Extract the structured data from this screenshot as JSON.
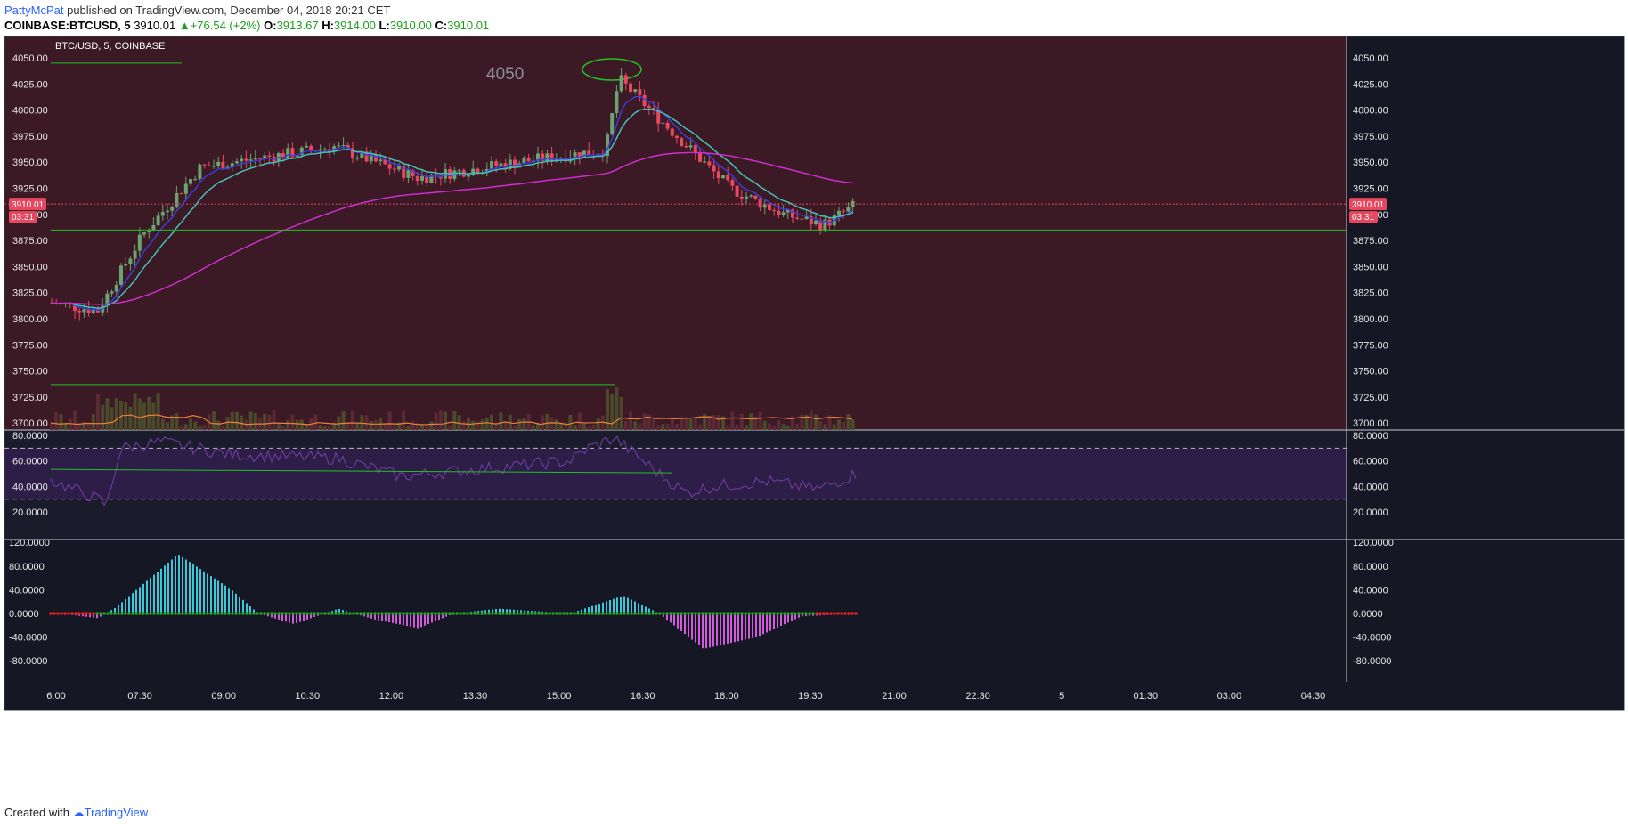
{
  "header": {
    "author": "PattyMcPat",
    "published": "published on TradingView.com, December 04, 2018 20:21 CET",
    "symbol": "COINBASE:BTCUSD, 5",
    "last": "3910.01",
    "change": "▲+76.54 (+2%)",
    "o_label": "O:",
    "o_value": "3913.67",
    "h_label": "H:",
    "h_value": "3914.00",
    "l_label": "L:",
    "l_value": "3910.00",
    "c_label": "C:",
    "c_value": "3910.01"
  },
  "footer": {
    "created_with": "Created with",
    "brand": "TradingView"
  },
  "colors": {
    "up": "#6aa36f",
    "down": "#e8485f",
    "ema_fast": "#3c3cd8",
    "ema_slow": "#43c1b7",
    "ma_long": "#cc2fcc",
    "level_line": "#22c022",
    "volume_ma": "#e9803a",
    "rsi_line": "#6b3a9a",
    "macd_up": "#3cc8d8",
    "macd_down": "#d05cd8",
    "price_badge": "#e8485f"
  },
  "chart_data": {
    "type": "candlestick",
    "title": "BTC/USD, 5, COINBASE",
    "annotation": "4050",
    "price_axis_ticks": [
      "4050.00",
      "4025.00",
      "4000.00",
      "3975.00",
      "3950.00",
      "3925.00",
      "3900.00",
      "3875.00",
      "3850.00",
      "3825.00",
      "3800.00",
      "3775.00",
      "3750.00",
      "3725.00",
      "3700.00"
    ],
    "price_badge": "3910.01",
    "countdown": "03:31",
    "x_ticks": [
      "6:00",
      "07:30",
      "09:00",
      "10:30",
      "12:00",
      "13:30",
      "15:00",
      "16:30",
      "18:00",
      "19:30",
      "21:00",
      "22:30",
      "5",
      "01:30",
      "03:00",
      "04:30"
    ],
    "rsi_ticks": [
      "80.0000",
      "60.0000",
      "40.0000",
      "20.0000"
    ],
    "rsi_bands": [
      70,
      30
    ],
    "macd_ticks": [
      "120.0000",
      "80.0000",
      "40.0000",
      "0.0000",
      "-40.0000",
      "-80.0000"
    ],
    "levels": [
      {
        "price": 4045
      },
      {
        "price": 3885
      },
      {
        "price": 3737
      }
    ],
    "rsi_level": 52,
    "key_points": {
      "t": [
        "6:00",
        "07:00",
        "07:40",
        "08:30",
        "10:40",
        "12:30",
        "14:00",
        "16:00",
        "16:10",
        "17:30",
        "18:00",
        "18:40",
        "19:40",
        "20:15"
      ],
      "close": [
        3815,
        3808,
        3880,
        3945,
        3965,
        3935,
        3948,
        3962,
        4030,
        3975,
        3925,
        3900,
        3890,
        3910
      ]
    }
  }
}
